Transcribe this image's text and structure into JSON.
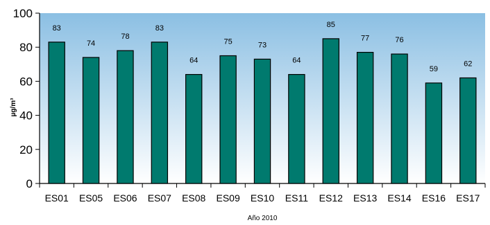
{
  "chart_data": {
    "type": "bar",
    "categories": [
      "ES01",
      "ES05",
      "ES06",
      "ES07",
      "ES08",
      "ES09",
      "ES10",
      "ES11",
      "ES12",
      "ES13",
      "ES14",
      "ES16",
      "ES17"
    ],
    "values": [
      83,
      74,
      78,
      83,
      64,
      75,
      73,
      64,
      85,
      77,
      76,
      59,
      62
    ],
    "title": "",
    "xlabel": "Año 2010",
    "ylabel": "µg/m³",
    "ylim": [
      0,
      100
    ],
    "yticks": [
      0,
      20,
      40,
      60,
      80,
      100
    ],
    "grid": false,
    "legend": "none",
    "colors": {
      "bar_fill": "#007a6e",
      "bar_stroke": "#000000",
      "background_top": "#8bbfe3",
      "background_bottom": "#ffffff"
    }
  }
}
